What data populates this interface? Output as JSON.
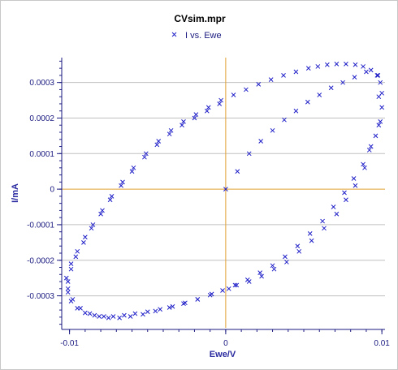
{
  "chart_data": {
    "type": "scatter",
    "title": "CVsim.mpr",
    "xlabel": "Ewe/V",
    "ylabel": "I/mA",
    "legend": {
      "position": "top-center",
      "entries": [
        "I vs. Ewe"
      ]
    },
    "xlim": [
      -0.0105,
      0.0102
    ],
    "ylim": [
      -0.00039,
      0.00037
    ],
    "x_ticks": [
      {
        "value": -0.01,
        "label": "-0.01"
      },
      {
        "value": 0,
        "label": "0"
      },
      {
        "value": 0.01,
        "label": "0.01"
      }
    ],
    "y_ticks": [
      {
        "value": 0.0003,
        "label": "0.0003"
      },
      {
        "value": 0.0002,
        "label": "0.0002"
      },
      {
        "value": 0.0001,
        "label": "0.0001"
      },
      {
        "value": 0,
        "label": "0"
      },
      {
        "value": -0.0001,
        "label": "-0.0001"
      },
      {
        "value": -0.0002,
        "label": "-0.0002"
      },
      {
        "value": -0.0003,
        "label": "-0.0003"
      }
    ],
    "grid": {
      "horizontal": true,
      "vertical": false
    },
    "zero_lines": true,
    "colors": {
      "marker": "#1f1fc8",
      "zero_line": "#e0a030",
      "grid": "#c0c0c0",
      "axis": "#1a1a80"
    },
    "series": [
      {
        "name": "I vs. Ewe",
        "marker": "x",
        "x": [
          0,
          0.00075,
          0.0015,
          0.00225,
          0.003,
          0.00375,
          0.0045,
          0.00525,
          0.006,
          0.00675,
          0.0075,
          0.00825,
          0.009,
          0.00975,
          0.0098,
          0.0098,
          0.0093,
          0.0089,
          0.0083,
          0.0077,
          0.0071,
          0.0063,
          0.0055,
          0.0047,
          0.0039,
          0.0031,
          0.0023,
          0.0015,
          0.0007,
          0.0002,
          -0.0009,
          -0.0018,
          -0.0027,
          -0.0036,
          -0.0045,
          -0.0053,
          -0.0061,
          -0.0068,
          -0.0075,
          -0.0081,
          -0.0087,
          -0.0093,
          -0.0098,
          -0.0101,
          -0.0102,
          -0.0099,
          -0.0095,
          -0.009,
          -0.0085,
          -0.0079,
          -0.0073,
          -0.0066,
          -0.0059,
          -0.0051,
          -0.0043,
          -0.0035,
          -0.0027,
          -0.0019,
          -0.0011,
          -0.0003,
          0.0005,
          0.0013,
          0.0021,
          0.0029,
          0.0037,
          0.0045,
          0.0053,
          0.0059,
          0.0065,
          0.0071,
          0.0077,
          0.0083,
          0.0088,
          0.0093,
          0.0097,
          0.0099,
          0.01,
          0.01,
          0.0099,
          0.0096,
          0.0092,
          0.0088,
          0.0082,
          0.0076,
          0.0069,
          0.0062,
          0.0054,
          0.0046,
          0.0038,
          0.003,
          0.0022,
          0.0014,
          0.0006,
          -0.0002,
          -0.001,
          -0.0018,
          -0.0026,
          -0.0034,
          -0.0042,
          -0.005,
          -0.0058,
          -0.0065,
          -0.0072,
          -0.0078,
          -0.0084,
          -0.009,
          -0.0095,
          -0.0099,
          -0.0101,
          -0.0101,
          -0.0099,
          -0.0096,
          -0.0091,
          -0.0086,
          -0.008,
          -0.0074,
          -0.0067,
          -0.006,
          -0.0052,
          -0.0044,
          -0.0036,
          -0.0028,
          -0.002,
          -0.0012,
          -0.0004
        ],
        "y": [
          0,
          5e-05,
          0.0001,
          0.000135,
          0.000165,
          0.000195,
          0.00022,
          0.000245,
          0.000265,
          0.000285,
          0.0003,
          0.000315,
          0.00033,
          0.00032,
          0.00026,
          0.00018,
          0.00012,
          6e-05,
          1e-05,
          -3e-05,
          -7e-05,
          -0.00011,
          -0.000145,
          -0.000175,
          -0.000205,
          -0.000225,
          -0.000245,
          -0.00026,
          -0.00027,
          -0.00028,
          -0.000295,
          -0.00031,
          -0.000322,
          -0.000333,
          -0.000343,
          -0.000352,
          -0.000358,
          -0.000362,
          -0.000362,
          -0.000358,
          -0.00035,
          -0.000335,
          -0.00031,
          -0.00028,
          -0.00025,
          -0.00021,
          -0.000175,
          -0.000135,
          -0.0001,
          -6e-05,
          -2e-05,
          2e-05,
          6e-05,
          0.0001,
          0.000135,
          0.000165,
          0.00019,
          0.00021,
          0.00023,
          0.00025,
          0.000265,
          0.00028,
          0.000295,
          0.000308,
          0.00032,
          0.00033,
          0.00034,
          0.000345,
          0.00035,
          0.000352,
          0.000352,
          0.00035,
          0.000345,
          0.000335,
          0.00032,
          0.0003,
          0.00027,
          0.00023,
          0.00019,
          0.00015,
          0.00011,
          7e-05,
          3e-05,
          -1e-05,
          -5e-05,
          -9e-05,
          -0.000125,
          -0.00016,
          -0.00019,
          -0.000215,
          -0.000235,
          -0.000255,
          -0.00027,
          -0.000285,
          -0.000298,
          -0.00031,
          -0.00032,
          -0.00033,
          -0.000338,
          -0.000345,
          -0.00035,
          -0.000355,
          -0.000358,
          -0.000358,
          -0.000355,
          -0.000348,
          -0.000335,
          -0.000315,
          -0.00029,
          -0.00026,
          -0.000225,
          -0.00019,
          -0.00015,
          -0.00011,
          -7e-05,
          -3e-05,
          1e-05,
          5e-05,
          9e-05,
          0.000125,
          0.000155,
          0.00018,
          0.0002,
          0.00022,
          0.00024
        ]
      }
    ]
  }
}
